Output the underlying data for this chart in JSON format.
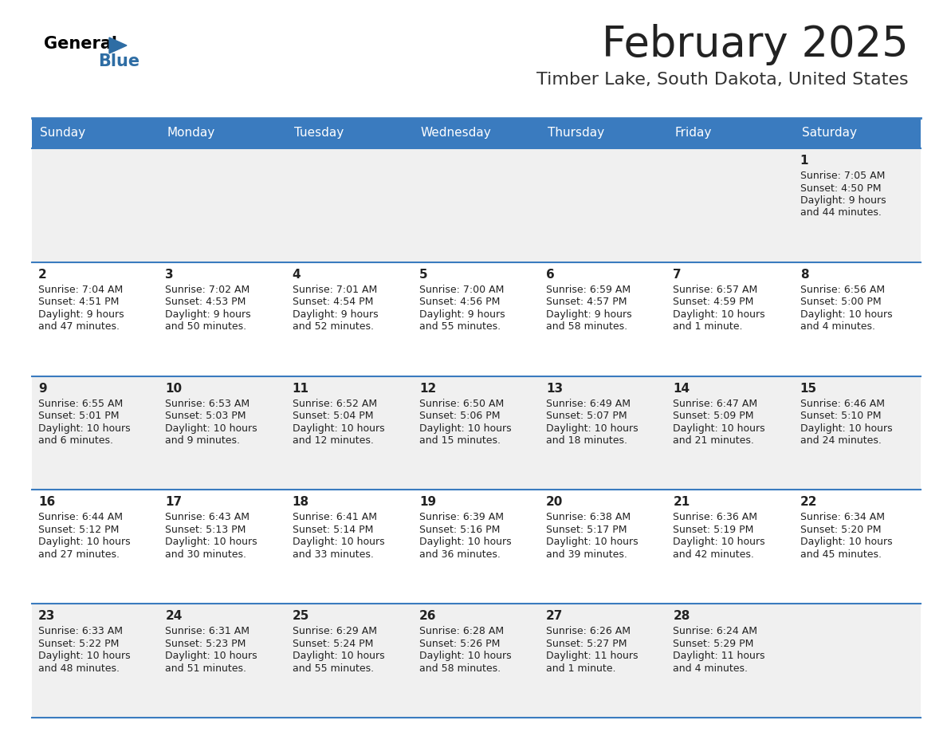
{
  "title": "February 2025",
  "subtitle": "Timber Lake, South Dakota, United States",
  "header_bg": "#3a7bbf",
  "header_text": "#ffffff",
  "row_bg_odd": "#f0f0f0",
  "row_bg_even": "#ffffff",
  "cell_border": "#3a7bbf",
  "day_headers": [
    "Sunday",
    "Monday",
    "Tuesday",
    "Wednesday",
    "Thursday",
    "Friday",
    "Saturday"
  ],
  "days": [
    {
      "day": 1,
      "col": 6,
      "row": 0,
      "sunrise": "7:05 AM",
      "sunset": "4:50 PM",
      "daylight_h": "9 hours",
      "daylight_m": "and 44 minutes."
    },
    {
      "day": 2,
      "col": 0,
      "row": 1,
      "sunrise": "7:04 AM",
      "sunset": "4:51 PM",
      "daylight_h": "9 hours",
      "daylight_m": "and 47 minutes."
    },
    {
      "day": 3,
      "col": 1,
      "row": 1,
      "sunrise": "7:02 AM",
      "sunset": "4:53 PM",
      "daylight_h": "9 hours",
      "daylight_m": "and 50 minutes."
    },
    {
      "day": 4,
      "col": 2,
      "row": 1,
      "sunrise": "7:01 AM",
      "sunset": "4:54 PM",
      "daylight_h": "9 hours",
      "daylight_m": "and 52 minutes."
    },
    {
      "day": 5,
      "col": 3,
      "row": 1,
      "sunrise": "7:00 AM",
      "sunset": "4:56 PM",
      "daylight_h": "9 hours",
      "daylight_m": "and 55 minutes."
    },
    {
      "day": 6,
      "col": 4,
      "row": 1,
      "sunrise": "6:59 AM",
      "sunset": "4:57 PM",
      "daylight_h": "9 hours",
      "daylight_m": "and 58 minutes."
    },
    {
      "day": 7,
      "col": 5,
      "row": 1,
      "sunrise": "6:57 AM",
      "sunset": "4:59 PM",
      "daylight_h": "10 hours",
      "daylight_m": "and 1 minute."
    },
    {
      "day": 8,
      "col": 6,
      "row": 1,
      "sunrise": "6:56 AM",
      "sunset": "5:00 PM",
      "daylight_h": "10 hours",
      "daylight_m": "and 4 minutes."
    },
    {
      "day": 9,
      "col": 0,
      "row": 2,
      "sunrise": "6:55 AM",
      "sunset": "5:01 PM",
      "daylight_h": "10 hours",
      "daylight_m": "and 6 minutes."
    },
    {
      "day": 10,
      "col": 1,
      "row": 2,
      "sunrise": "6:53 AM",
      "sunset": "5:03 PM",
      "daylight_h": "10 hours",
      "daylight_m": "and 9 minutes."
    },
    {
      "day": 11,
      "col": 2,
      "row": 2,
      "sunrise": "6:52 AM",
      "sunset": "5:04 PM",
      "daylight_h": "10 hours",
      "daylight_m": "and 12 minutes."
    },
    {
      "day": 12,
      "col": 3,
      "row": 2,
      "sunrise": "6:50 AM",
      "sunset": "5:06 PM",
      "daylight_h": "10 hours",
      "daylight_m": "and 15 minutes."
    },
    {
      "day": 13,
      "col": 4,
      "row": 2,
      "sunrise": "6:49 AM",
      "sunset": "5:07 PM",
      "daylight_h": "10 hours",
      "daylight_m": "and 18 minutes."
    },
    {
      "day": 14,
      "col": 5,
      "row": 2,
      "sunrise": "6:47 AM",
      "sunset": "5:09 PM",
      "daylight_h": "10 hours",
      "daylight_m": "and 21 minutes."
    },
    {
      "day": 15,
      "col": 6,
      "row": 2,
      "sunrise": "6:46 AM",
      "sunset": "5:10 PM",
      "daylight_h": "10 hours",
      "daylight_m": "and 24 minutes."
    },
    {
      "day": 16,
      "col": 0,
      "row": 3,
      "sunrise": "6:44 AM",
      "sunset": "5:12 PM",
      "daylight_h": "10 hours",
      "daylight_m": "and 27 minutes."
    },
    {
      "day": 17,
      "col": 1,
      "row": 3,
      "sunrise": "6:43 AM",
      "sunset": "5:13 PM",
      "daylight_h": "10 hours",
      "daylight_m": "and 30 minutes."
    },
    {
      "day": 18,
      "col": 2,
      "row": 3,
      "sunrise": "6:41 AM",
      "sunset": "5:14 PM",
      "daylight_h": "10 hours",
      "daylight_m": "and 33 minutes."
    },
    {
      "day": 19,
      "col": 3,
      "row": 3,
      "sunrise": "6:39 AM",
      "sunset": "5:16 PM",
      "daylight_h": "10 hours",
      "daylight_m": "and 36 minutes."
    },
    {
      "day": 20,
      "col": 4,
      "row": 3,
      "sunrise": "6:38 AM",
      "sunset": "5:17 PM",
      "daylight_h": "10 hours",
      "daylight_m": "and 39 minutes."
    },
    {
      "day": 21,
      "col": 5,
      "row": 3,
      "sunrise": "6:36 AM",
      "sunset": "5:19 PM",
      "daylight_h": "10 hours",
      "daylight_m": "and 42 minutes."
    },
    {
      "day": 22,
      "col": 6,
      "row": 3,
      "sunrise": "6:34 AM",
      "sunset": "5:20 PM",
      "daylight_h": "10 hours",
      "daylight_m": "and 45 minutes."
    },
    {
      "day": 23,
      "col": 0,
      "row": 4,
      "sunrise": "6:33 AM",
      "sunset": "5:22 PM",
      "daylight_h": "10 hours",
      "daylight_m": "and 48 minutes."
    },
    {
      "day": 24,
      "col": 1,
      "row": 4,
      "sunrise": "6:31 AM",
      "sunset": "5:23 PM",
      "daylight_h": "10 hours",
      "daylight_m": "and 51 minutes."
    },
    {
      "day": 25,
      "col": 2,
      "row": 4,
      "sunrise": "6:29 AM",
      "sunset": "5:24 PM",
      "daylight_h": "10 hours",
      "daylight_m": "and 55 minutes."
    },
    {
      "day": 26,
      "col": 3,
      "row": 4,
      "sunrise": "6:28 AM",
      "sunset": "5:26 PM",
      "daylight_h": "10 hours",
      "daylight_m": "and 58 minutes."
    },
    {
      "day": 27,
      "col": 4,
      "row": 4,
      "sunrise": "6:26 AM",
      "sunset": "5:27 PM",
      "daylight_h": "11 hours",
      "daylight_m": "and 1 minute."
    },
    {
      "day": 28,
      "col": 5,
      "row": 4,
      "sunrise": "6:24 AM",
      "sunset": "5:29 PM",
      "daylight_h": "11 hours",
      "daylight_m": "and 4 minutes."
    }
  ],
  "num_rows": 5,
  "num_cols": 7
}
